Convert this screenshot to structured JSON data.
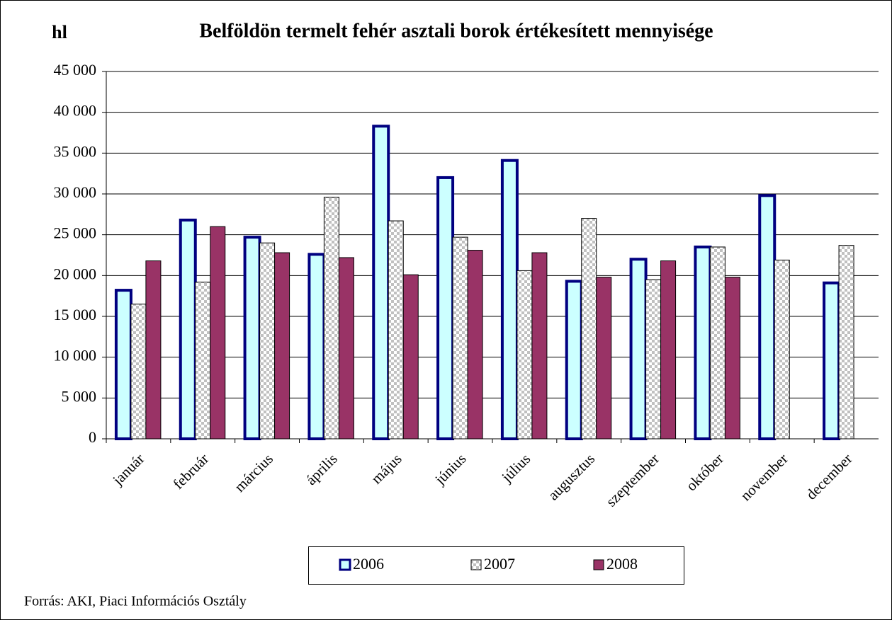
{
  "chart_data": {
    "type": "bar",
    "title": "Belföldön termelt fehér asztali borok értékesített mennyisége",
    "y_label": "hl",
    "source": "Forrás: AKI, Piaci Információs Osztály",
    "categories": [
      "január",
      "február",
      "március",
      "április",
      "május",
      "június",
      "július",
      "augusztus",
      "szeptember",
      "október",
      "november",
      "december"
    ],
    "series": [
      {
        "name": "2006",
        "color": "#ccffff",
        "edge_color": "#000080",
        "values": [
          18200,
          26800,
          24700,
          22600,
          38300,
          32000,
          34100,
          19300,
          22000,
          23500,
          29800,
          19100
        ]
      },
      {
        "name": "2007",
        "color": "#c0c0c0",
        "values": [
          16500,
          19200,
          24000,
          29600,
          26700,
          24700,
          20600,
          27000,
          19500,
          23500,
          21900,
          23700
        ]
      },
      {
        "name": "2008",
        "color": "#993366",
        "values": [
          21800,
          26000,
          22800,
          22200,
          20100,
          23100,
          22800,
          19800,
          21800,
          19800,
          null,
          null
        ]
      }
    ],
    "ylim": [
      0,
      45000
    ],
    "yticks": [
      0,
      {
        "value": 5000,
        "label": "5 000"
      },
      {
        "value": 10000,
        "label": "10 000"
      },
      {
        "value": 15000,
        "label": "15 000"
      },
      {
        "value": 20000,
        "label": "20 000"
      },
      {
        "value": 25000,
        "label": "25 000"
      },
      {
        "value": 30000,
        "label": "30 000"
      },
      {
        "value": 35000,
        "label": "35 000"
      },
      {
        "value": 40000,
        "label": "40 000"
      },
      {
        "value": 45000,
        "label": "45 000"
      }
    ],
    "grid": true,
    "legend": "bottom"
  }
}
